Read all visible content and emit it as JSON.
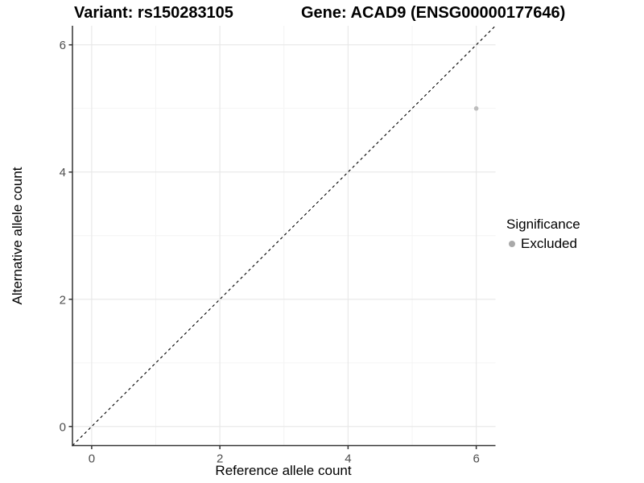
{
  "figure": {
    "title_left": "Variant: rs150283105",
    "title_right": "Gene: ACAD9 (ENSG00000177646)",
    "xlabel": "Reference allele count",
    "ylabel": "Alternative allele count",
    "legend": {
      "title": "Significance",
      "items": [
        {
          "label": "Excluded",
          "color": "#a9a9a9"
        }
      ]
    }
  },
  "chart_data": {
    "type": "scatter",
    "title": "Variant: rs150283105 | Gene: ACAD9 (ENSG00000177646)",
    "xlabel": "Reference allele count",
    "ylabel": "Alternative allele count",
    "xlim": [
      -0.3,
      6.3
    ],
    "ylim": [
      -0.3,
      6.3
    ],
    "x_ticks": [
      0,
      2,
      4,
      6
    ],
    "y_ticks": [
      0,
      2,
      4,
      6
    ],
    "x_minor_ticks": [
      1,
      3,
      5
    ],
    "y_minor_ticks": [
      1,
      3,
      5
    ],
    "grid": true,
    "legend_position": "right",
    "series": [
      {
        "name": "Excluded",
        "color": "#bdbdbd",
        "points": [
          {
            "x": 6,
            "y": 5
          }
        ]
      }
    ],
    "reference_line": {
      "kind": "identity",
      "slope": 1,
      "intercept": 0,
      "style": "dashed",
      "color": "#000000"
    }
  },
  "colors": {
    "background": "#ffffff",
    "major_grid": "#e7e7e7",
    "minor_grid": "#f3f3f3",
    "axis_line": "#333333",
    "tick_label": "#4d4d4d",
    "title": "#000000",
    "point": "#bdbdbd",
    "legend_key": "#a9a9a9"
  }
}
